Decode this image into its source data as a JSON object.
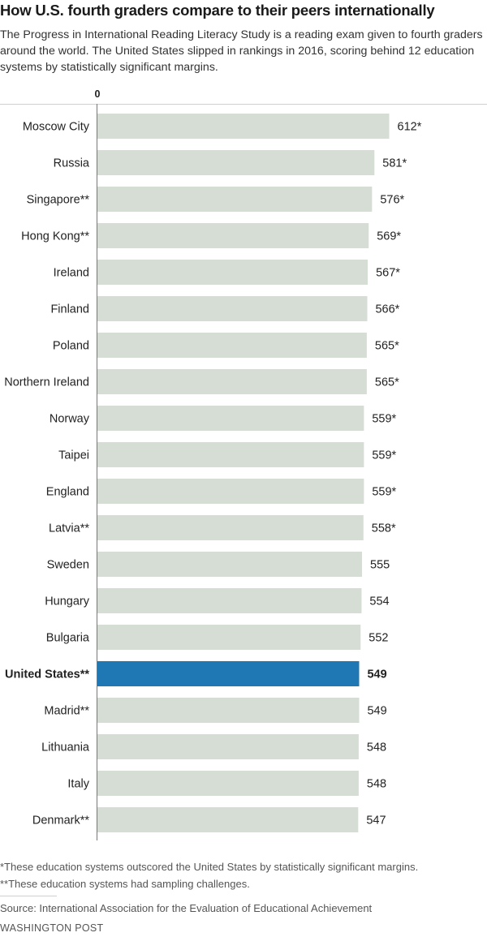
{
  "header": {
    "title": "How U.S. fourth graders compare to their peers internationally",
    "subtitle": "The Progress in International Reading Literacy Study is a reading exam given to fourth graders around the world. The United States slipped in rankings in 2016, scoring behind 12 education systems by statistically significant margins."
  },
  "chart_data": {
    "type": "bar",
    "orientation": "horizontal",
    "axis_zero_label": "0",
    "categories": [
      "Moscow City",
      "Russia",
      "Singapore**",
      "Hong Kong**",
      "Ireland",
      "Finland",
      "Poland",
      "Northern Ireland",
      "Norway",
      "Taipei",
      "England",
      "Latvia**",
      "Sweden",
      "Hungary",
      "Bulgaria",
      "United States**",
      "Madrid**",
      "Lithuania",
      "Italy",
      "Denmark**"
    ],
    "values": [
      612,
      581,
      576,
      569,
      567,
      566,
      565,
      565,
      559,
      559,
      559,
      558,
      555,
      554,
      552,
      549,
      549,
      548,
      548,
      547
    ],
    "value_labels": [
      "612*",
      "581*",
      "576*",
      "569*",
      "567*",
      "566*",
      "565*",
      "565*",
      "559*",
      "559*",
      "559*",
      "558*",
      "555",
      "554",
      "552",
      "549",
      "549",
      "548",
      "548",
      "547"
    ],
    "highlight": "United States**",
    "xlim": [
      0,
      612
    ],
    "grid": false,
    "colors": {
      "bar": "#d5ddd5",
      "highlight": "#1f77b4",
      "axis": "#777777"
    }
  },
  "footnotes": {
    "note1": "*These education systems outscored the United States by statistically significant margins.",
    "note2": "**These education systems had sampling challenges."
  },
  "source": "Source: International Association for the Evaluation of Educational Achievement",
  "credit": "WASHINGTON POST"
}
